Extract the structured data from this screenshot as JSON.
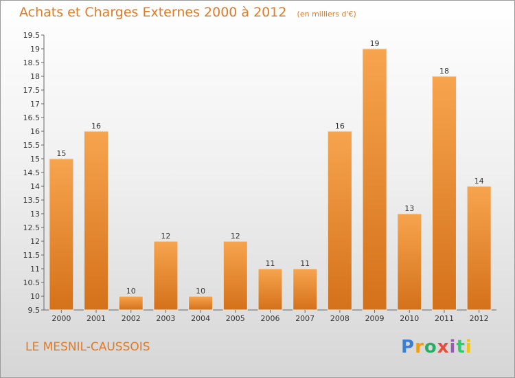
{
  "title": "Achats et Charges Externes 2000 à 2012",
  "subtitle": "(en milliers d'€)",
  "location": "LE MESNIL-CAUSSOIS",
  "logo": {
    "text": "Proxiti",
    "letter_colors": [
      "#3b7fd4",
      "#f39c12",
      "#27ae60",
      "#e74c3c",
      "#9b59b6",
      "#2ecc71",
      "#f1c40f"
    ]
  },
  "colors": {
    "bar_top": "#f7a44e",
    "bar_bottom": "#d4711a",
    "title": "#e07a25"
  },
  "chart_data": {
    "type": "bar",
    "title": "Achats et Charges Externes 2000 à 2012",
    "categories": [
      "2000",
      "2001",
      "2002",
      "2003",
      "2004",
      "2005",
      "2006",
      "2007",
      "2008",
      "2009",
      "2010",
      "2011",
      "2012"
    ],
    "values": [
      15,
      16,
      10,
      12,
      10,
      12,
      11,
      11,
      16,
      19,
      13,
      18,
      14
    ],
    "data_labels": [
      "15",
      "16",
      "10",
      "12",
      "10",
      "12",
      "11",
      "11",
      "16",
      "19",
      "13",
      "18",
      "14"
    ],
    "ylim": [
      9.5,
      19.5
    ],
    "yticks": [
      9.5,
      10,
      10.5,
      11,
      11.5,
      12,
      12.5,
      13,
      13.5,
      14,
      14.5,
      15,
      15.5,
      16,
      16.5,
      17,
      17.5,
      18,
      18.5,
      19,
      19.5
    ],
    "ytick_labels": [
      "9.5",
      "10",
      "10.5",
      "11",
      "11.5",
      "12",
      "12.5",
      "13",
      "13.5",
      "14",
      "14.5",
      "15",
      "15.5",
      "16",
      "16.5",
      "17",
      "17.5",
      "18",
      "18.5",
      "19",
      "19.5"
    ],
    "grid": false,
    "xlabel": "",
    "ylabel": ""
  }
}
